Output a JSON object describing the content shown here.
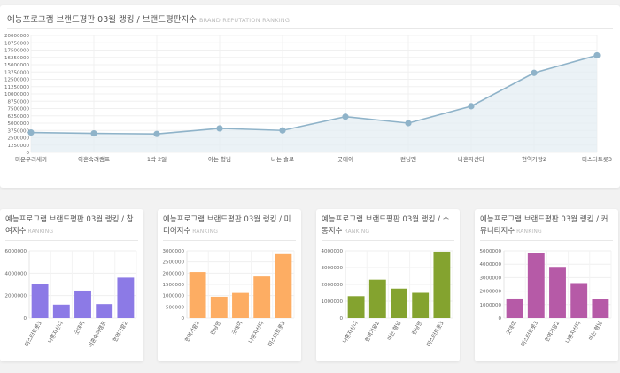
{
  "main": {
    "title": "예능프로그램 브랜드평판 03월 랭킹 / 브랜드평판지수",
    "subtitle": "BRAND REPUTATION RANKING"
  },
  "colors": {
    "line": "#8fb3c9",
    "area": "#e4edf3",
    "purple": "#8c7ae6",
    "orange": "#fdad63",
    "green": "#84a32f",
    "magenta": "#b65aa7"
  },
  "small_titles": [
    {
      "title": "예능프로그램 브랜드평판 03월 랭킹 / 참여지수",
      "subtitle": "RANKING"
    },
    {
      "title": "예능프로그램 브랜드평판 03월 랭킹 / 미디어지수",
      "subtitle": "RANKING"
    },
    {
      "title": "예능프로그램 브랜드평판 03월 랭킹 / 소통지수",
      "subtitle": "RANKING"
    },
    {
      "title": "예능프로그램 브랜드평판 03월 랭킹 / 커뮤니티지수",
      "subtitle": "RANKING"
    }
  ],
  "chart_data": [
    {
      "type": "area",
      "categories": [
        "미운우리새끼",
        "이혼숙려캠프",
        "1박 2일",
        "아는 형님",
        "나는 솔로",
        "굿데이",
        "런닝맨",
        "나혼자산다",
        "현역가왕2",
        "미스터트롯3"
      ],
      "values": [
        3400000,
        3250000,
        3150000,
        4100000,
        3750000,
        6100000,
        5000000,
        7900000,
        13600000,
        16600000
      ],
      "yticks": [
        "20000000",
        "18750000",
        "17500000",
        "16250000",
        "15000000",
        "13750000",
        "12500000",
        "11250000",
        "10000000",
        "8750000",
        "7500000",
        "6250000",
        "5000000",
        "3750000",
        "2500000",
        "1250000",
        "0"
      ],
      "ylim": [
        0,
        20000000
      ],
      "grid": true
    },
    {
      "type": "bar",
      "categories": [
        "미스터트롯3",
        "나혼자산다",
        "굿데이",
        "이혼숙려캠프",
        "현역가왕2"
      ],
      "values": [
        3000000,
        1200000,
        2450000,
        1250000,
        3600000
      ],
      "yticks": [
        "6000000",
        "4000000",
        "2000000",
        "0"
      ],
      "ylim": [
        0,
        6000000
      ],
      "grid": true
    },
    {
      "type": "bar",
      "categories": [
        "현역가왕2",
        "런닝맨",
        "굿데이",
        "나혼자산다",
        "미스터트롯3"
      ],
      "values": [
        2050000,
        950000,
        1120000,
        1850000,
        2850000
      ],
      "yticks": [
        "3000000",
        "2500000",
        "2000000",
        "1500000",
        "1000000",
        "500000",
        "0"
      ],
      "ylim": [
        0,
        3000000
      ],
      "grid": true
    },
    {
      "type": "bar",
      "categories": [
        "나혼자산다",
        "현역가왕2",
        "아는 형님",
        "런닝맨",
        "미스터트롯3"
      ],
      "values": [
        1300000,
        2280000,
        1750000,
        1500000,
        3950000
      ],
      "yticks": [
        "4000000",
        "3000000",
        "2000000",
        "1000000",
        "0"
      ],
      "ylim": [
        0,
        4000000
      ],
      "grid": true
    },
    {
      "type": "bar",
      "categories": [
        "굿데이",
        "미스터트롯3",
        "현역가왕2",
        "나혼자산다",
        "아는 형님"
      ],
      "values": [
        1450000,
        4850000,
        3800000,
        2600000,
        1400000
      ],
      "yticks": [
        "5000000",
        "4000000",
        "3000000",
        "2000000",
        "1000000",
        "0"
      ],
      "ylim": [
        0,
        5000000
      ],
      "grid": true
    }
  ]
}
